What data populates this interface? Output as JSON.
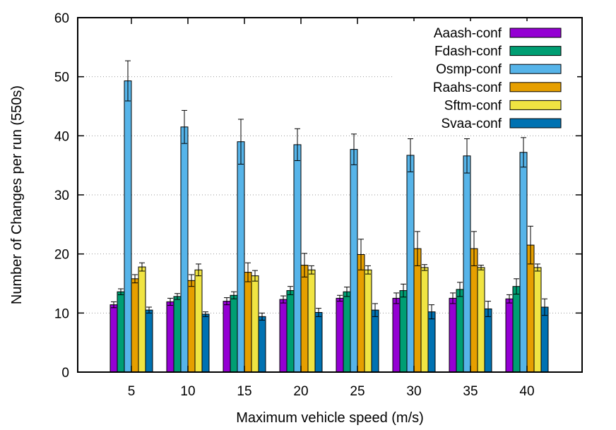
{
  "chart_data": {
    "type": "bar",
    "title": "",
    "xlabel": "Maximum vehicle speed (m/s)",
    "ylabel": "Number of Changes per run (550s)",
    "ylim": [
      0,
      60
    ],
    "yticks": [
      0,
      10,
      20,
      30,
      40,
      50,
      60
    ],
    "grid": "horizontal dotted",
    "legend_position": "top-right",
    "categories": [
      "5",
      "10",
      "15",
      "20",
      "25",
      "30",
      "35",
      "40"
    ],
    "series": [
      {
        "name": "Aaash-conf",
        "color": "#9400d3",
        "values": [
          11.4,
          11.9,
          12.0,
          12.3,
          12.5,
          12.5,
          12.5,
          12.4
        ],
        "errors": [
          0.5,
          0.6,
          0.6,
          0.6,
          0.5,
          0.9,
          0.9,
          0.7
        ]
      },
      {
        "name": "Fdash-conf",
        "color": "#009e73",
        "values": [
          13.6,
          12.8,
          13.0,
          13.8,
          13.6,
          13.8,
          14.0,
          14.5
        ],
        "errors": [
          0.5,
          0.5,
          0.6,
          0.7,
          0.8,
          1.1,
          1.2,
          1.3
        ]
      },
      {
        "name": "Osmp-conf",
        "color": "#56b4e9",
        "values": [
          49.3,
          41.5,
          39.0,
          38.5,
          37.7,
          36.7,
          36.6,
          37.2
        ],
        "errors": [
          3.4,
          2.8,
          3.8,
          2.7,
          2.6,
          2.8,
          2.9,
          2.5
        ]
      },
      {
        "name": "Raahs-conf",
        "color": "#e69f00",
        "values": [
          15.8,
          15.5,
          16.9,
          18.1,
          19.9,
          20.9,
          20.9,
          21.5
        ],
        "errors": [
          0.7,
          1.0,
          1.6,
          2.0,
          2.6,
          2.9,
          2.9,
          3.2
        ]
      },
      {
        "name": "Sftm-conf",
        "color": "#f0e442",
        "values": [
          17.8,
          17.3,
          16.3,
          17.3,
          17.3,
          17.7,
          17.7,
          17.7
        ],
        "errors": [
          0.7,
          1.0,
          0.9,
          0.7,
          0.7,
          0.5,
          0.4,
          0.6
        ]
      },
      {
        "name": "Svaa-conf",
        "color": "#0072b2",
        "values": [
          10.5,
          9.8,
          9.4,
          10.1,
          10.5,
          10.2,
          10.7,
          11.0
        ],
        "errors": [
          0.5,
          0.4,
          0.6,
          0.7,
          1.1,
          1.2,
          1.3,
          1.4
        ]
      }
    ]
  }
}
